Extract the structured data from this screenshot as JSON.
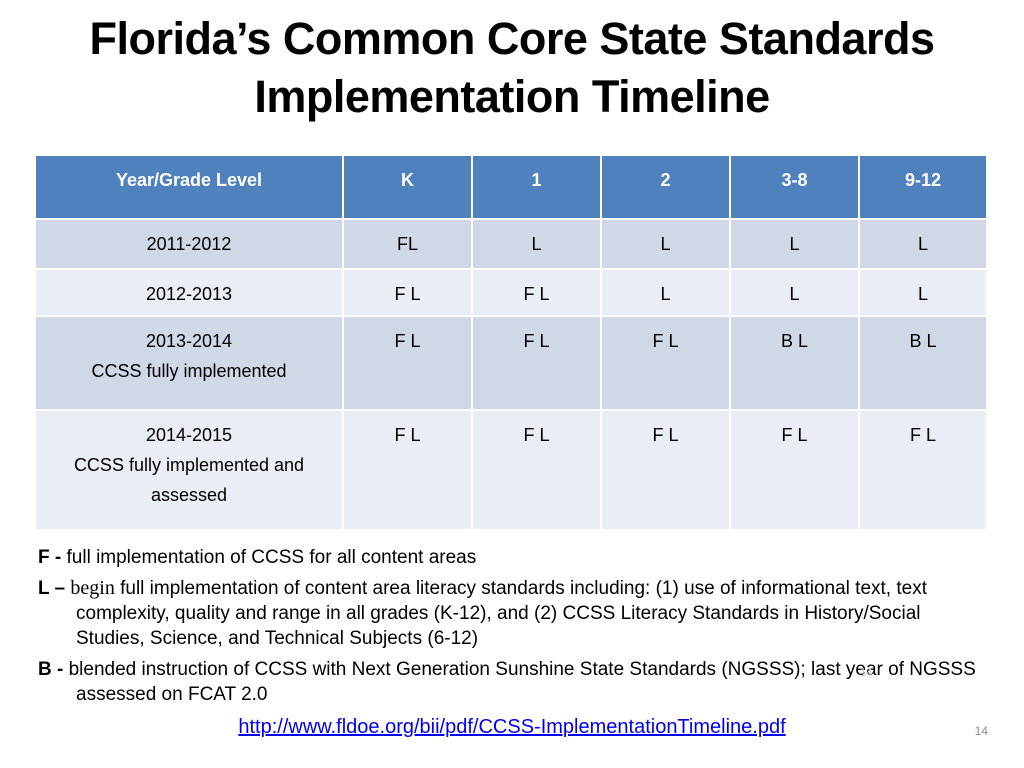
{
  "title": {
    "line1": "Florida’s Common Core State Standards",
    "line2": "Implementation Timeline"
  },
  "table": {
    "headers": [
      "Year/Grade Level",
      "K",
      "1",
      "2",
      "3-8",
      "9-12"
    ],
    "rows": [
      {
        "year": "2011-2012",
        "note": "",
        "cells": [
          "FL",
          "L",
          "L",
          "L",
          "L"
        ]
      },
      {
        "year": "2012-2013",
        "note": "",
        "cells": [
          "F L",
          "F L",
          "L",
          "L",
          "L"
        ]
      },
      {
        "year": "2013-2014",
        "note": "CCSS fully implemented",
        "cells": [
          "F L",
          "F L",
          "F L",
          "B L",
          "B L"
        ]
      },
      {
        "year": "2014-2015",
        "note": "CCSS fully implemented and assessed",
        "cells": [
          "F L",
          "F L",
          "F L",
          "F L",
          "F L"
        ]
      }
    ],
    "colors": {
      "header_bg": "#4f81bd",
      "row_odd_bg": "#d0d8e8",
      "row_even_bg": "#e9edf4"
    }
  },
  "legend": {
    "f_key": "F -",
    "f_text": " full implementation of CCSS for all content areas",
    "l_key": "L –",
    "l_begin": "begin",
    "l_text": " full implementation of content area literacy standards including:  (1) use of informational text, text complexity, quality and range in all grades (K-12), and (2) CCSS Literacy Standards in History/Social Studies, Science, and Technical Subjects (6-12)",
    "b_key": "B -",
    "b_text": " blended instruction of CCSS with Next Generation Sunshine State Standards (NGSSS); last year of NGSSS assessed on FCAT 2.0"
  },
  "faint_mark": "14",
  "link": "http://www.fldoe.org/bii/pdf/CCSS-ImplementationTimeline.pdf",
  "slide_number": "14"
}
